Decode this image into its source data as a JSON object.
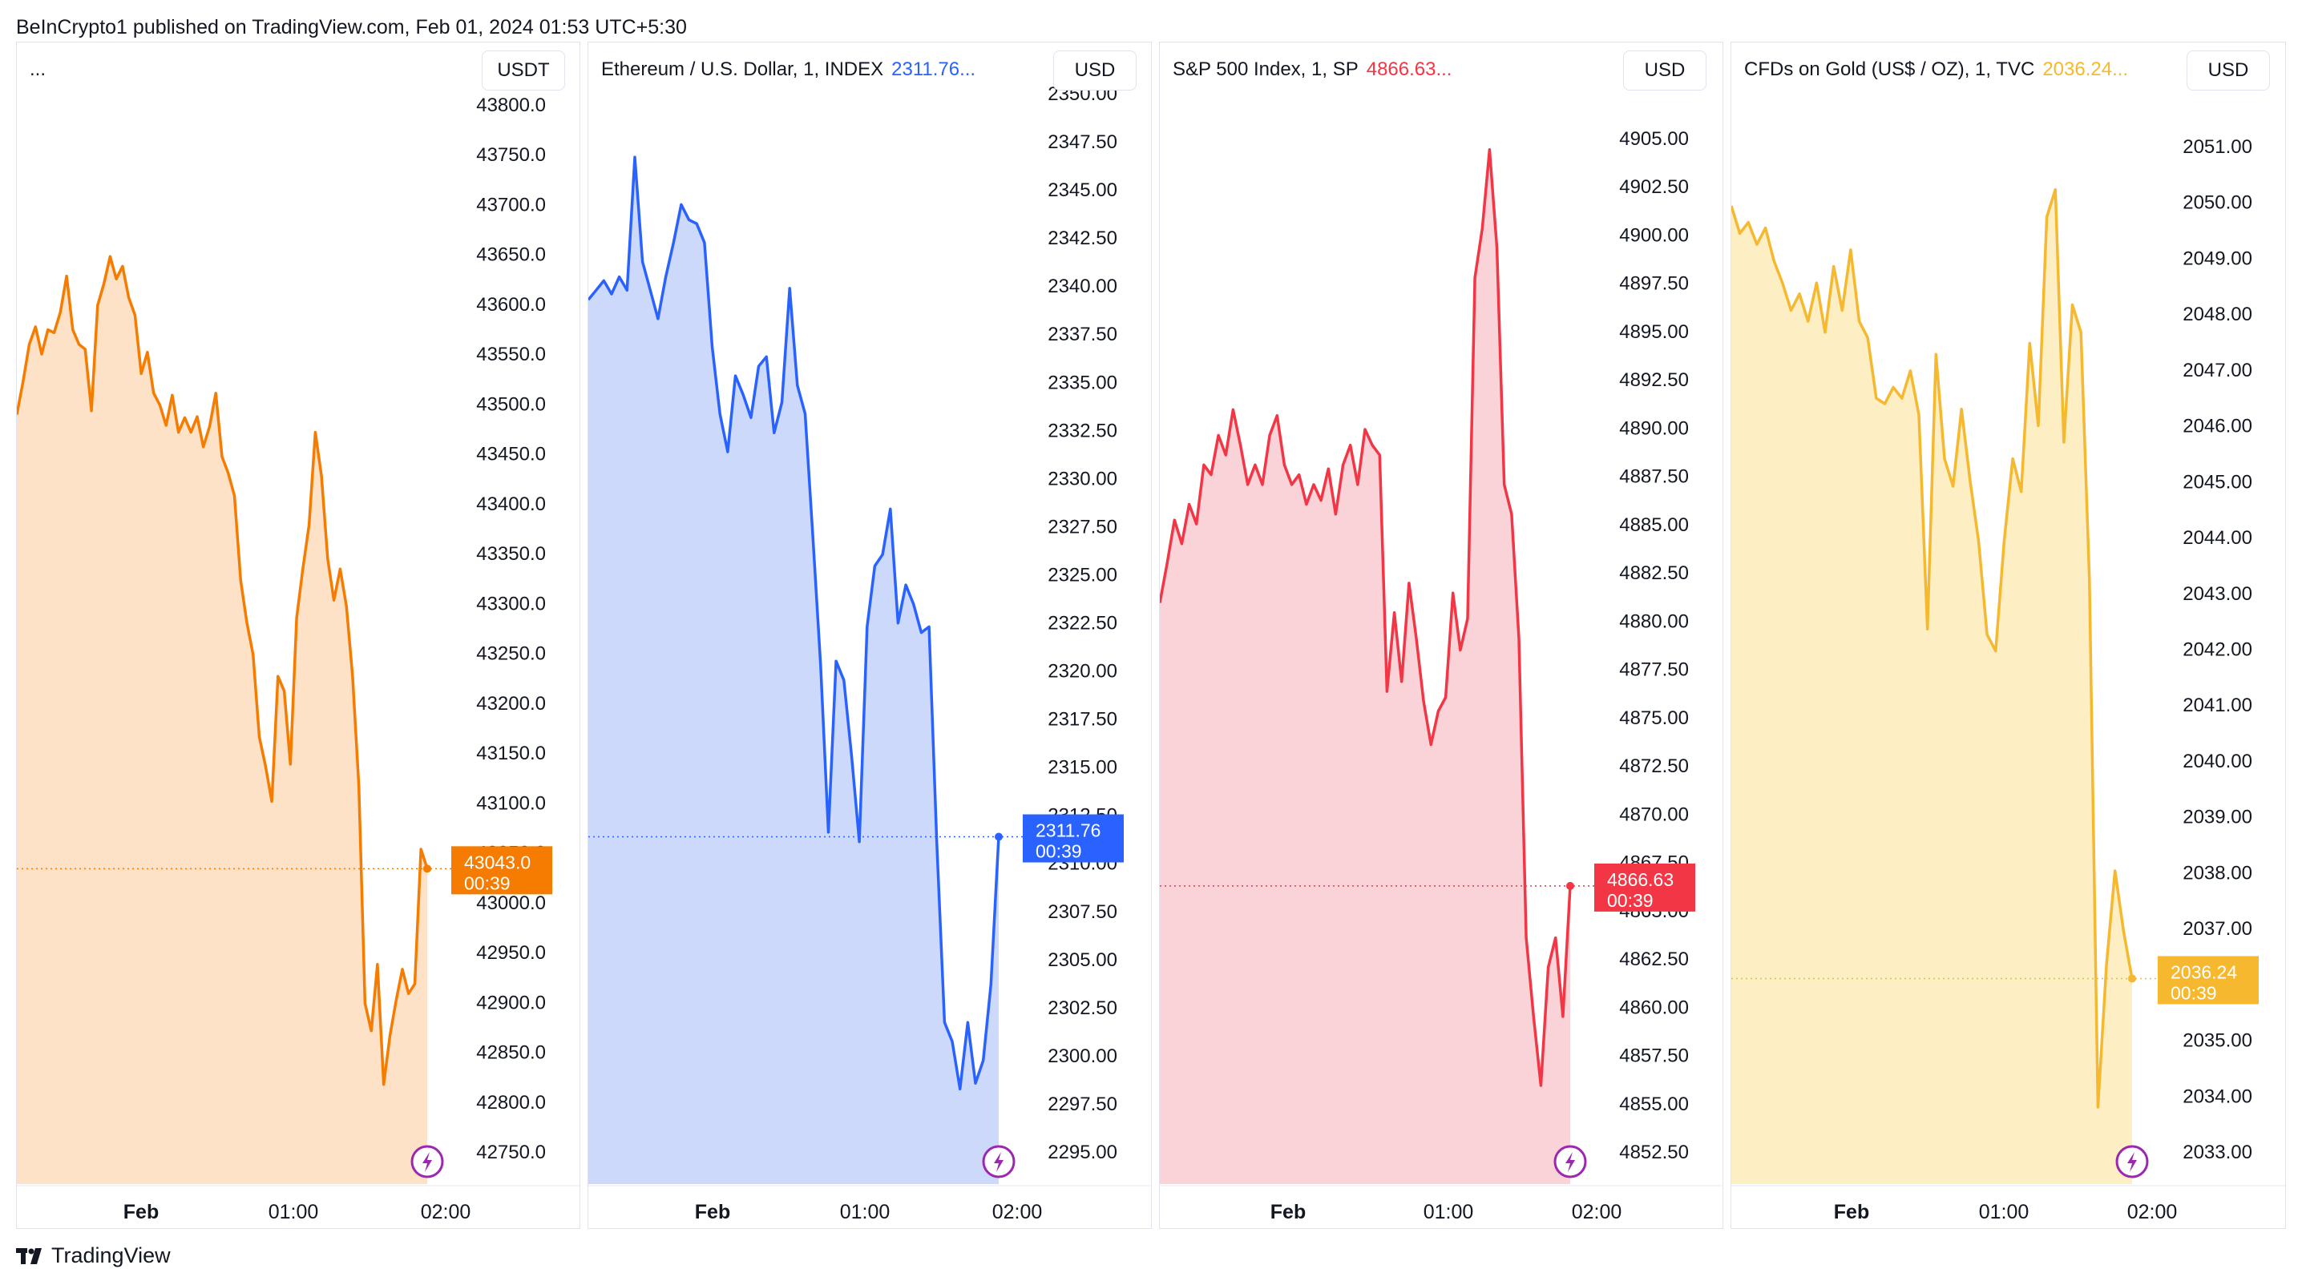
{
  "header": {
    "published": "BeInCrypto1 published on TradingView.com, Feb 01, 2024 01:53 UTC+5:30"
  },
  "footer": {
    "brand": "TradingView"
  },
  "chart_data": [
    {
      "type": "area",
      "title": "...",
      "price_text": "",
      "currency": "USDT",
      "color": "#f57c00",
      "fill": "#fde2c8",
      "ylim": [
        42720,
        43840
      ],
      "yticks": [
        "43800.0",
        "43750.0",
        "43700.0",
        "43650.0",
        "43600.0",
        "43550.0",
        "43500.0",
        "43450.0",
        "43400.0",
        "43350.0",
        "43300.0",
        "43250.0",
        "43200.0",
        "43150.0",
        "43100.0",
        "43050.0",
        "43000.0",
        "42950.0",
        "42900.0",
        "42850.0",
        "42800.0",
        "42750.0"
      ],
      "xticks": [
        "Feb",
        "01:00",
        "02:00"
      ],
      "last_price": "43043.0",
      "countdown": "00:39",
      "values": [
        43508,
        43542,
        43580,
        43598,
        43570,
        43595,
        43592,
        43613,
        43650,
        43595,
        43580,
        43575,
        43512,
        43620,
        43642,
        43670,
        43647,
        43660,
        43628,
        43610,
        43550,
        43572,
        43530,
        43518,
        43497,
        43528,
        43490,
        43505,
        43490,
        43506,
        43475,
        43496,
        43530,
        43465,
        43448,
        43425,
        43338,
        43295,
        43262,
        43178,
        43148,
        43112,
        43240,
        43225,
        43150,
        43300,
        43350,
        43395,
        43490,
        43445,
        43360,
        43318,
        43350,
        43312,
        43240,
        43128,
        42905,
        42877,
        42945,
        42822,
        42872,
        42908,
        42940,
        42915,
        42925,
        43063,
        43043
      ]
    },
    {
      "type": "area",
      "title": "Ethereum / U.S. Dollar, 1, INDEX",
      "price_text": "2311.76...",
      "currency": "USD",
      "color": "#2962ff",
      "fill": "#cdd9fb",
      "ylim": [
        2293.5,
        2351
      ],
      "yticks": [
        "2350.00",
        "2347.50",
        "2345.00",
        "2342.50",
        "2340.00",
        "2337.50",
        "2335.00",
        "2332.50",
        "2330.00",
        "2327.50",
        "2325.00",
        "2322.50",
        "2320.00",
        "2317.50",
        "2315.00",
        "2312.50",
        "2310.00",
        "2307.50",
        "2305.00",
        "2302.50",
        "2300.00",
        "2297.50",
        "2295.00"
      ],
      "xticks": [
        "Feb",
        "01:00",
        "02:00"
      ],
      "last_price": "2311.76",
      "countdown": "00:39",
      "values": [
        2340,
        2340.5,
        2341,
        2340.3,
        2341.2,
        2340.5,
        2347.5,
        2342,
        2340.5,
        2339,
        2341.2,
        2343,
        2345,
        2344.2,
        2344,
        2343,
        2337.5,
        2334,
        2332,
        2336,
        2335,
        2333.8,
        2336.5,
        2337,
        2333,
        2334.6,
        2340.6,
        2335.5,
        2334,
        2327.5,
        2320.8,
        2312,
        2321,
        2320,
        2316,
        2311.5,
        2322.8,
        2326,
        2326.6,
        2329,
        2323,
        2325,
        2324,
        2322.5,
        2322.8,
        2311.5,
        2302,
        2301,
        2298.5,
        2302,
        2298.8,
        2300,
        2304,
        2311.76
      ]
    },
    {
      "type": "area",
      "title": "S&P 500 Index, 1, SP",
      "price_text": "4866.63...",
      "currency": "USD",
      "color": "#f23645",
      "fill": "#fad3d8",
      "ylim": [
        4851.5,
        4907
      ],
      "yticks": [
        "4905.00",
        "4902.50",
        "4900.00",
        "4897.50",
        "4895.00",
        "4892.50",
        "4890.00",
        "4887.50",
        "4885.00",
        "4882.50",
        "4880.00",
        "4877.50",
        "4875.00",
        "4872.50",
        "4870.00",
        "4867.50",
        "4865.00",
        "4862.50",
        "4860.00",
        "4857.50",
        "4855.00",
        "4852.50"
      ],
      "xticks": [
        "Feb",
        "01:00",
        "02:00"
      ],
      "last_price": "4866.63",
      "countdown": "00:39",
      "values": [
        4881,
        4883,
        4885.2,
        4884,
        4886,
        4885,
        4888,
        4887.5,
        4889.5,
        4888.5,
        4890.8,
        4889,
        4887,
        4888,
        4887,
        4889.5,
        4890.5,
        4888,
        4887,
        4887.5,
        4886,
        4887,
        4886.2,
        4887.8,
        4885.5,
        4888,
        4889,
        4887,
        4889.8,
        4889,
        4888.5,
        4876.5,
        4880.5,
        4877,
        4882,
        4879.2,
        4876,
        4873.8,
        4875.5,
        4876.2,
        4881.5,
        4878.6,
        4880.2,
        4897.5,
        4900,
        4904,
        4899,
        4887,
        4885.5,
        4879.2,
        4864,
        4860,
        4856.5,
        4862.5,
        4864,
        4860,
        4866.63
      ]
    },
    {
      "type": "area",
      "title": "CFDs on Gold (US$ / OZ), 1, TVC",
      "price_text": "2036.24...",
      "currency": "USD",
      "color": "#f5b82e",
      "fill": "#fdeec4",
      "ylim": [
        2032.5,
        2052.4
      ],
      "yticks": [
        "2051.00",
        "2050.00",
        "2049.00",
        "2048.00",
        "2047.00",
        "2046.00",
        "2045.00",
        "2044.00",
        "2043.00",
        "2042.00",
        "2041.00",
        "2040.00",
        "2039.00",
        "2038.00",
        "2037.00",
        "2036.00",
        "2035.00",
        "2034.00",
        "2033.00"
      ],
      "xticks": [
        "Feb",
        "01:00",
        "02:00"
      ],
      "last_price": "2036.24",
      "countdown": "00:39",
      "values": [
        2050.3,
        2049.8,
        2050.0,
        2049.6,
        2049.9,
        2049.3,
        2048.9,
        2048.4,
        2048.7,
        2048.2,
        2048.9,
        2048.0,
        2049.2,
        2048.4,
        2049.5,
        2048.2,
        2047.9,
        2046.8,
        2046.7,
        2047.0,
        2046.8,
        2047.3,
        2046.5,
        2042.6,
        2047.6,
        2045.7,
        2045.2,
        2046.6,
        2045.3,
        2044.2,
        2042.5,
        2042.2,
        2044.2,
        2045.7,
        2045.1,
        2047.8,
        2046.3,
        2050.1,
        2050.6,
        2046.0,
        2048.5,
        2048.0,
        2043.5,
        2033.9,
        2036.5,
        2038.2,
        2037.1,
        2036.24
      ]
    }
  ]
}
